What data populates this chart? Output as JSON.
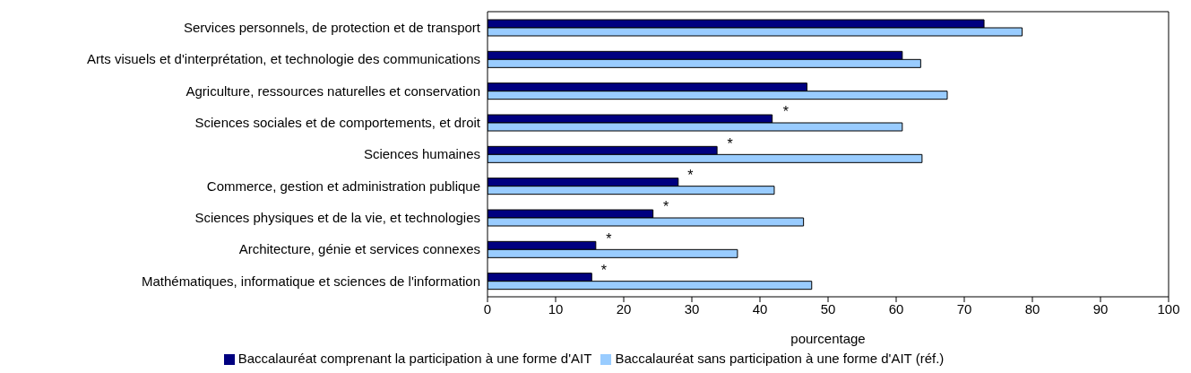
{
  "chart_data": {
    "type": "bar",
    "orientation": "horizontal",
    "xlabel": "pourcentage",
    "categories": [
      "Services personnels, de protection et de transport",
      "Arts visuels et d'interprétation, et technologie des communications",
      "Agriculture, ressources naturelles et conservation",
      "Sciences sociales et de comportements, et droit",
      "Sciences humaines",
      "Commerce, gestion et administration publique",
      "Sciences physiques et de la vie, et technologies",
      "Architecture, génie et services connexes",
      "Mathématiques, informatique et sciences de l'information"
    ],
    "series": [
      {
        "name": "Baccalauréat comprenant la participation à une forme d'AIT",
        "color": "#000080",
        "values": [
          72.9,
          60.9,
          46.9,
          41.8,
          33.7,
          28.0,
          24.3,
          15.9,
          15.3
        ]
      },
      {
        "name": "Baccalauréat sans participation à une forme d'AIT (réf.)",
        "color": "#99ccff",
        "values": [
          78.5,
          63.6,
          67.5,
          60.9,
          63.8,
          42.1,
          46.4,
          36.7,
          47.6
        ]
      }
    ],
    "xlim": [
      0,
      100
    ],
    "xticks": [
      0,
      10,
      20,
      30,
      40,
      50,
      60,
      70,
      80,
      90,
      100
    ],
    "annotations": [
      {
        "text": "*",
        "x": 43.8,
        "y": "Sciences sociales et de comportements, et droit"
      },
      {
        "text": "*",
        "x": 35.6,
        "y": "Sciences humaines"
      },
      {
        "text": "*",
        "x": 29.8,
        "y": "Commerce, gestion et administration publique"
      },
      {
        "text": "*",
        "x": 26.2,
        "y": "Sciences physiques et de la vie, et technologies"
      },
      {
        "text": "*",
        "x": 17.8,
        "y": "Architecture, génie et services connexes"
      },
      {
        "text": "*",
        "x": 17.1,
        "y": "Mathématiques, informatique et sciences de l'information"
      }
    ],
    "legend": "bottom",
    "grid": false
  }
}
